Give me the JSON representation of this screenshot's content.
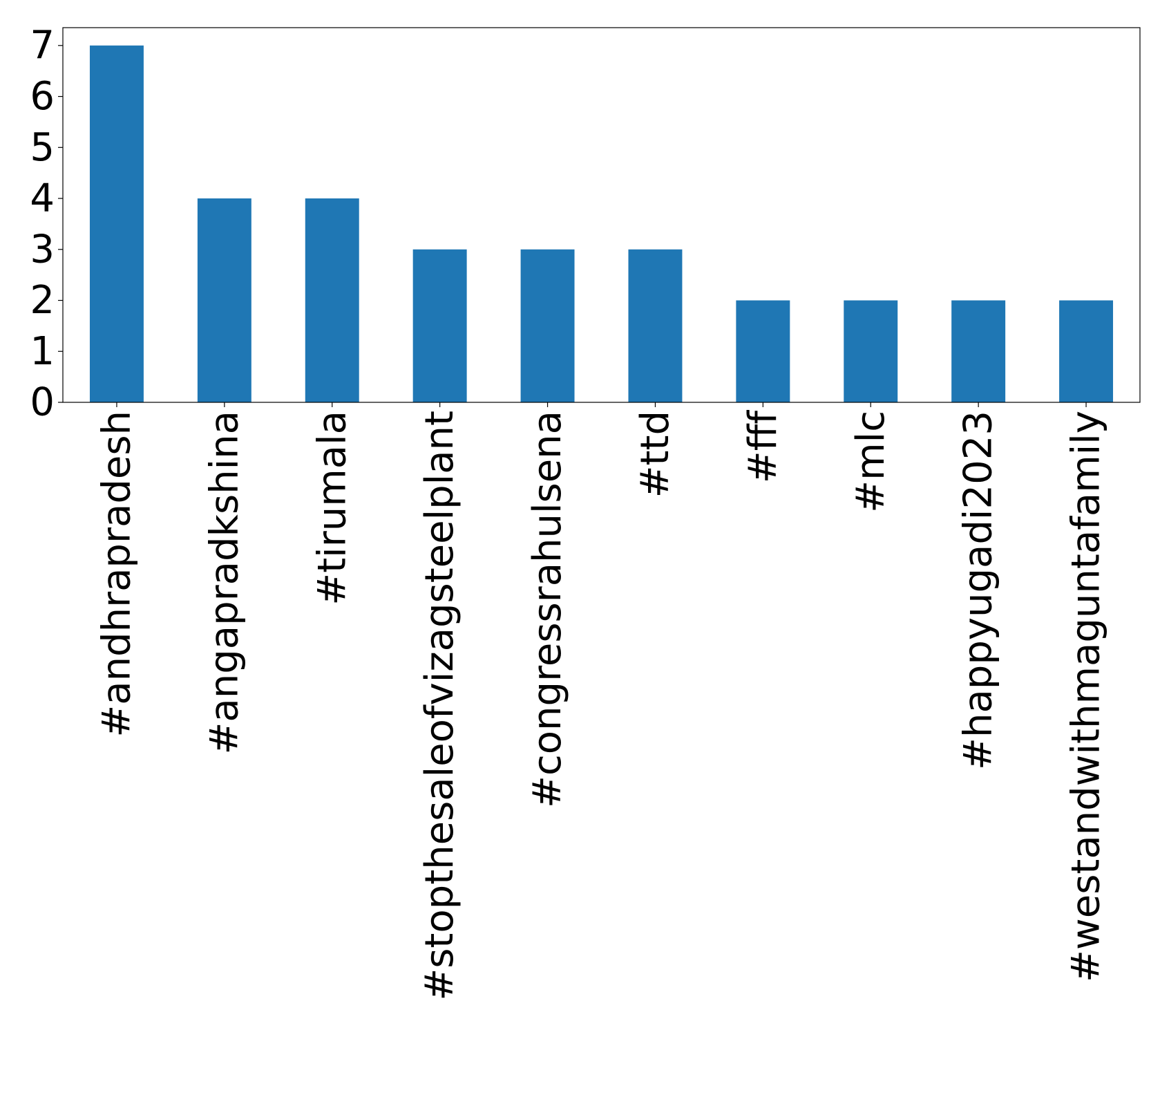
{
  "chart_data": {
    "type": "bar",
    "title": "",
    "xlabel": "",
    "ylabel": "",
    "categories": [
      "#andhrapradesh",
      "#angapradkshina",
      "#tirumala",
      "#stopthesaleofvizagsteelplant",
      "#congressrahulsena",
      "#ttd",
      "#fff",
      "#mlc",
      "#happyugadi2023",
      "#westandwithmaguntafamily"
    ],
    "values": [
      7,
      4,
      4,
      3,
      3,
      3,
      2,
      2,
      2,
      2
    ],
    "ylim": [
      0,
      7.35
    ],
    "yticks": [
      "0",
      "1",
      "2",
      "3",
      "4",
      "5",
      "6",
      "7"
    ],
    "grid": false,
    "legend": "none",
    "colors": {
      "bar": "#1f77b4",
      "axis": "#000000",
      "background": "#ffffff"
    }
  }
}
